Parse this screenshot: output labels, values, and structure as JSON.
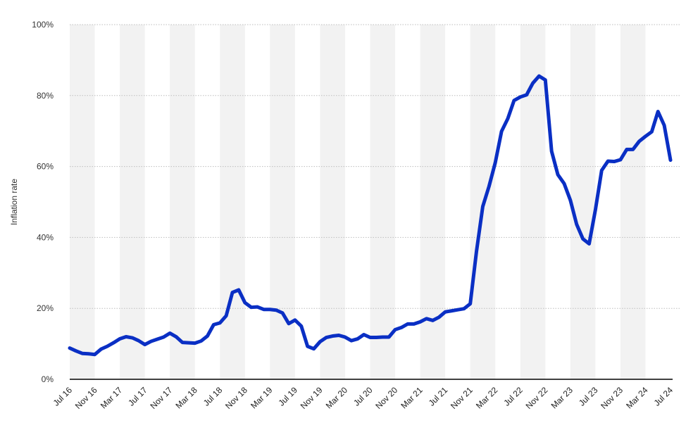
{
  "chart_data": {
    "type": "line",
    "title": "",
    "xlabel": "",
    "ylabel": "Inflation rate",
    "ylim": [
      0,
      100
    ],
    "yticks": [
      "0%",
      "20%",
      "40%",
      "60%",
      "80%",
      "100%"
    ],
    "ytick_values": [
      0,
      20,
      40,
      60,
      80,
      100
    ],
    "xtick_labels": [
      "Jul 16",
      "Nov 16",
      "Mar 17",
      "Jul 17",
      "Nov 17",
      "Mar 18",
      "Jul 18",
      "Nov 18",
      "Mar 19",
      "Jul 19",
      "Nov 19",
      "Mar 20",
      "Jul 20",
      "Nov 20",
      "Mar 21",
      "Jul 21",
      "Nov 21",
      "Mar 22",
      "Jul 22",
      "Nov 22",
      "Mar 23",
      "Jul 23",
      "Nov 23",
      "Mar 24",
      "Jul 24"
    ],
    "grid": true,
    "alternating_bands": true,
    "colors": {
      "line": "#0a2fc4",
      "band": "#f2f2f2",
      "grid": "#bdbdbd",
      "axis": "#000000"
    },
    "series": [
      {
        "x": [
          "Jul 16",
          "Aug 16",
          "Sep 16",
          "Oct 16",
          "Nov 16",
          "Dec 16",
          "Jan 17",
          "Feb 17",
          "Mar 17",
          "Apr 17",
          "May 17",
          "Jun 17",
          "Jul 17",
          "Aug 17",
          "Sep 17",
          "Oct 17",
          "Nov 17",
          "Dec 17",
          "Jan 18",
          "Feb 18",
          "Mar 18",
          "Apr 18",
          "May 18",
          "Jun 18",
          "Jul 18",
          "Aug 18",
          "Sep 18",
          "Oct 18",
          "Nov 18",
          "Dec 18",
          "Jan 19",
          "Feb 19",
          "Mar 19",
          "Apr 19",
          "May 19",
          "Jun 19",
          "Jul 19",
          "Aug 19",
          "Sep 19",
          "Oct 19",
          "Nov 19",
          "Dec 19",
          "Jan 20",
          "Feb 20",
          "Mar 20",
          "Apr 20",
          "May 20",
          "Jun 20",
          "Jul 20",
          "Aug 20",
          "Sep 20",
          "Oct 20",
          "Nov 20",
          "Dec 20",
          "Jan 21",
          "Feb 21",
          "Mar 21",
          "Apr 21",
          "May 21",
          "Jun 21",
          "Jul 21",
          "Aug 21",
          "Sep 21",
          "Oct 21",
          "Nov 21",
          "Dec 21",
          "Jan 22",
          "Feb 22",
          "Mar 22",
          "Apr 22",
          "May 22",
          "Jun 22",
          "Jul 22",
          "Aug 22",
          "Sep 22",
          "Oct 22",
          "Nov 22",
          "Dec 22",
          "Jan 23",
          "Feb 23",
          "Mar 23",
          "Apr 23",
          "May 23",
          "Jun 23",
          "Jul 23",
          "Aug 23",
          "Sep 23",
          "Oct 23",
          "Nov 23",
          "Dec 23",
          "Jan 24",
          "Feb 24",
          "Mar 24",
          "Apr 24",
          "May 24",
          "Jun 24",
          "Jul 24"
        ],
        "values": [
          8.8,
          8.0,
          7.3,
          7.2,
          7.0,
          8.5,
          9.3,
          10.3,
          11.4,
          12.0,
          11.7,
          10.9,
          9.8,
          10.7,
          11.3,
          11.9,
          13.0,
          12.0,
          10.4,
          10.3,
          10.2,
          10.8,
          12.2,
          15.4,
          15.9,
          17.9,
          24.5,
          25.2,
          21.6,
          20.3,
          20.4,
          19.7,
          19.7,
          19.5,
          18.7,
          15.7,
          16.7,
          15.0,
          9.3,
          8.6,
          10.6,
          11.8,
          12.2,
          12.4,
          11.9,
          10.9,
          11.4,
          12.6,
          11.8,
          11.8,
          11.9,
          11.9,
          14.0,
          14.6,
          15.6,
          15.6,
          16.2,
          17.1,
          16.6,
          17.5,
          19.0,
          19.3,
          19.6,
          19.9,
          21.3,
          36.1,
          48.7,
          54.4,
          61.1,
          69.9,
          73.5,
          78.6,
          79.6,
          80.2,
          83.5,
          85.5,
          84.4,
          64.3,
          57.7,
          55.2,
          50.5,
          43.7,
          39.6,
          38.2,
          47.8,
          58.9,
          61.5,
          61.4,
          61.9,
          64.8,
          64.8,
          67.1,
          68.5,
          69.8,
          75.5,
          71.6,
          61.8
        ]
      }
    ]
  }
}
